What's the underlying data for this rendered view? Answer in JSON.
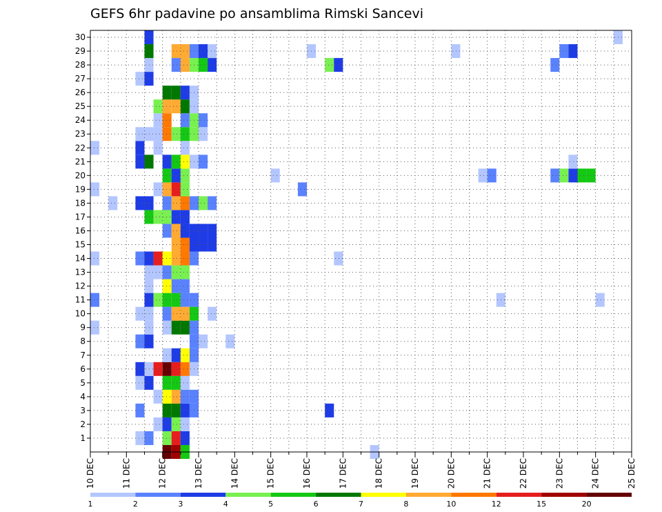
{
  "chart_data": {
    "type": "heatmap",
    "title": "GEFS 6hr padavine po ansamblima Rimski Sancevi",
    "xlabel": "",
    "ylabel": "",
    "x_tick_labels": [
      "10 DEC",
      "11 DEC",
      "12 DEC",
      "13 DEC",
      "14 DEC",
      "15 DEC",
      "16 DEC",
      "17 DEC",
      "18 DEC",
      "19 DEC",
      "20 DEC",
      "21 DEC",
      "22 DEC",
      "23 DEC",
      "24 DEC",
      "25 DEC"
    ],
    "x_range_days": [
      10,
      25
    ],
    "time_step_hours": 6,
    "ensemble_members": [
      0,
      30
    ],
    "y_tick_labels": [
      "1",
      "2",
      "3",
      "4",
      "5",
      "6",
      "7",
      "8",
      "9",
      "10",
      "11",
      "12",
      "13",
      "14",
      "15",
      "16",
      "17",
      "18",
      "19",
      "20",
      "21",
      "22",
      "23",
      "24",
      "25",
      "26",
      "27",
      "28",
      "29",
      "30"
    ],
    "grid": "dotted",
    "legend": {
      "placement": "bottom",
      "labels": [
        "1",
        "2",
        "3",
        "4",
        "5",
        "6",
        "7",
        "8",
        "10",
        "12",
        "15",
        "20"
      ],
      "colors": [
        "#b4c6ff",
        "#5a82ff",
        "#1e3ce6",
        "#78f050",
        "#14c814",
        "#007800",
        "#ffff00",
        "#ffaa32",
        "#ff7800",
        "#e61e1e",
        "#a00000",
        "#640000"
      ]
    },
    "values": [
      {
        "m": 0,
        "d": 12.0,
        "c": 11
      },
      {
        "m": 0,
        "d": 12.25,
        "c": 10
      },
      {
        "m": 0,
        "d": 12.5,
        "c": 4
      },
      {
        "m": 0,
        "d": 17.75,
        "c": 0
      },
      {
        "m": 1,
        "d": 11.25,
        "c": 0
      },
      {
        "m": 1,
        "d": 11.5,
        "c": 1
      },
      {
        "m": 1,
        "d": 12.0,
        "c": 3
      },
      {
        "m": 1,
        "d": 12.25,
        "c": 9
      },
      {
        "m": 1,
        "d": 12.5,
        "c": 2
      },
      {
        "m": 2,
        "d": 11.75,
        "c": 0
      },
      {
        "m": 2,
        "d": 12.0,
        "c": 2
      },
      {
        "m": 2,
        "d": 12.25,
        "c": 3
      },
      {
        "m": 2,
        "d": 12.5,
        "c": 0
      },
      {
        "m": 3,
        "d": 11.25,
        "c": 1
      },
      {
        "m": 3,
        "d": 12.0,
        "c": 5
      },
      {
        "m": 3,
        "d": 12.25,
        "c": 5
      },
      {
        "m": 3,
        "d": 12.5,
        "c": 2
      },
      {
        "m": 3,
        "d": 12.75,
        "c": 1
      },
      {
        "m": 3,
        "d": 16.5,
        "c": 2
      },
      {
        "m": 4,
        "d": 11.75,
        "c": 0
      },
      {
        "m": 4,
        "d": 12.0,
        "c": 6
      },
      {
        "m": 4,
        "d": 12.25,
        "c": 7
      },
      {
        "m": 4,
        "d": 12.5,
        "c": 1
      },
      {
        "m": 4,
        "d": 12.75,
        "c": 1
      },
      {
        "m": 5,
        "d": 11.25,
        "c": 0
      },
      {
        "m": 5,
        "d": 11.5,
        "c": 2
      },
      {
        "m": 5,
        "d": 12.0,
        "c": 4
      },
      {
        "m": 5,
        "d": 12.25,
        "c": 4
      },
      {
        "m": 5,
        "d": 12.5,
        "c": 0
      },
      {
        "m": 6,
        "d": 11.25,
        "c": 2
      },
      {
        "m": 6,
        "d": 11.5,
        "c": 0
      },
      {
        "m": 6,
        "d": 11.75,
        "c": 9
      },
      {
        "m": 6,
        "d": 12.0,
        "c": 11
      },
      {
        "m": 6,
        "d": 12.25,
        "c": 9
      },
      {
        "m": 6,
        "d": 12.5,
        "c": 8
      },
      {
        "m": 6,
        "d": 12.75,
        "c": 0
      },
      {
        "m": 7,
        "d": 12.0,
        "c": 0
      },
      {
        "m": 7,
        "d": 12.25,
        "c": 2
      },
      {
        "m": 7,
        "d": 12.5,
        "c": 6
      },
      {
        "m": 7,
        "d": 12.75,
        "c": 1
      },
      {
        "m": 8,
        "d": 11.25,
        "c": 1
      },
      {
        "m": 8,
        "d": 11.5,
        "c": 2
      },
      {
        "m": 8,
        "d": 12.75,
        "c": 1
      },
      {
        "m": 8,
        "d": 13.0,
        "c": 0
      },
      {
        "m": 8,
        "d": 13.75,
        "c": 0
      },
      {
        "m": 9,
        "d": 10.0,
        "c": 0
      },
      {
        "m": 9,
        "d": 11.5,
        "c": 0
      },
      {
        "m": 9,
        "d": 12.0,
        "c": 0
      },
      {
        "m": 9,
        "d": 12.25,
        "c": 5
      },
      {
        "m": 9,
        "d": 12.5,
        "c": 5
      },
      {
        "m": 9,
        "d": 12.75,
        "c": 1
      },
      {
        "m": 10,
        "d": 11.25,
        "c": 0
      },
      {
        "m": 10,
        "d": 11.5,
        "c": 0
      },
      {
        "m": 10,
        "d": 12.0,
        "c": 1
      },
      {
        "m": 10,
        "d": 12.25,
        "c": 7
      },
      {
        "m": 10,
        "d": 12.5,
        "c": 7
      },
      {
        "m": 10,
        "d": 12.75,
        "c": 4
      },
      {
        "m": 10,
        "d": 13.25,
        "c": 0
      },
      {
        "m": 11,
        "d": 10.0,
        "c": 1
      },
      {
        "m": 11,
        "d": 11.5,
        "c": 2
      },
      {
        "m": 11,
        "d": 11.75,
        "c": 3
      },
      {
        "m": 11,
        "d": 12.0,
        "c": 4
      },
      {
        "m": 11,
        "d": 12.25,
        "c": 4
      },
      {
        "m": 11,
        "d": 12.5,
        "c": 1
      },
      {
        "m": 11,
        "d": 12.75,
        "c": 1
      },
      {
        "m": 11,
        "d": 21.25,
        "c": 0
      },
      {
        "m": 11,
        "d": 24.0,
        "c": 0
      },
      {
        "m": 12,
        "d": 11.5,
        "c": 0
      },
      {
        "m": 12,
        "d": 12.0,
        "c": 6
      },
      {
        "m": 12,
        "d": 12.25,
        "c": 1
      },
      {
        "m": 12,
        "d": 12.5,
        "c": 1
      },
      {
        "m": 13,
        "d": 11.5,
        "c": 0
      },
      {
        "m": 13,
        "d": 11.75,
        "c": 0
      },
      {
        "m": 13,
        "d": 12.0,
        "c": 1
      },
      {
        "m": 13,
        "d": 12.25,
        "c": 3
      },
      {
        "m": 13,
        "d": 12.5,
        "c": 3
      },
      {
        "m": 14,
        "d": 10.0,
        "c": 0
      },
      {
        "m": 14,
        "d": 11.25,
        "c": 1
      },
      {
        "m": 14,
        "d": 11.5,
        "c": 2
      },
      {
        "m": 14,
        "d": 11.75,
        "c": 9
      },
      {
        "m": 14,
        "d": 12.0,
        "c": 6
      },
      {
        "m": 14,
        "d": 12.25,
        "c": 7
      },
      {
        "m": 14,
        "d": 12.5,
        "c": 8
      },
      {
        "m": 14,
        "d": 12.75,
        "c": 1
      },
      {
        "m": 14,
        "d": 16.75,
        "c": 0
      },
      {
        "m": 15,
        "d": 12.25,
        "c": 7
      },
      {
        "m": 15,
        "d": 12.5,
        "c": 8
      },
      {
        "m": 15,
        "d": 12.75,
        "c": 2
      },
      {
        "m": 15,
        "d": 13.0,
        "c": 2
      },
      {
        "m": 15,
        "d": 13.25,
        "c": 2
      },
      {
        "m": 16,
        "d": 12.0,
        "c": 1
      },
      {
        "m": 16,
        "d": 12.25,
        "c": 7
      },
      {
        "m": 16,
        "d": 12.5,
        "c": 2
      },
      {
        "m": 16,
        "d": 12.75,
        "c": 2
      },
      {
        "m": 16,
        "d": 13.0,
        "c": 2
      },
      {
        "m": 16,
        "d": 13.25,
        "c": 2
      },
      {
        "m": 17,
        "d": 11.5,
        "c": 4
      },
      {
        "m": 17,
        "d": 11.75,
        "c": 3
      },
      {
        "m": 17,
        "d": 12.0,
        "c": 3
      },
      {
        "m": 17,
        "d": 12.25,
        "c": 2
      },
      {
        "m": 17,
        "d": 12.5,
        "c": 2
      },
      {
        "m": 18,
        "d": 10.5,
        "c": 0
      },
      {
        "m": 18,
        "d": 11.25,
        "c": 2
      },
      {
        "m": 18,
        "d": 11.5,
        "c": 2
      },
      {
        "m": 18,
        "d": 12.0,
        "c": 1
      },
      {
        "m": 18,
        "d": 12.25,
        "c": 7
      },
      {
        "m": 18,
        "d": 12.5,
        "c": 8
      },
      {
        "m": 18,
        "d": 12.75,
        "c": 1
      },
      {
        "m": 18,
        "d": 13.0,
        "c": 3
      },
      {
        "m": 18,
        "d": 13.25,
        "c": 1
      },
      {
        "m": 19,
        "d": 10.0,
        "c": 0
      },
      {
        "m": 19,
        "d": 11.75,
        "c": 0
      },
      {
        "m": 19,
        "d": 12.0,
        "c": 7
      },
      {
        "m": 19,
        "d": 12.25,
        "c": 9
      },
      {
        "m": 19,
        "d": 12.5,
        "c": 3
      },
      {
        "m": 19,
        "d": 15.75,
        "c": 1
      },
      {
        "m": 20,
        "d": 12.0,
        "c": 4
      },
      {
        "m": 20,
        "d": 12.25,
        "c": 2
      },
      {
        "m": 20,
        "d": 12.5,
        "c": 3
      },
      {
        "m": 20,
        "d": 15.0,
        "c": 0
      },
      {
        "m": 20,
        "d": 20.75,
        "c": 0
      },
      {
        "m": 20,
        "d": 21.0,
        "c": 1
      },
      {
        "m": 20,
        "d": 22.75,
        "c": 1
      },
      {
        "m": 20,
        "d": 23.0,
        "c": 3
      },
      {
        "m": 20,
        "d": 23.25,
        "c": 2
      },
      {
        "m": 20,
        "d": 23.5,
        "c": 4
      },
      {
        "m": 20,
        "d": 23.75,
        "c": 4
      },
      {
        "m": 21,
        "d": 11.25,
        "c": 2
      },
      {
        "m": 21,
        "d": 11.5,
        "c": 5
      },
      {
        "m": 21,
        "d": 12.0,
        "c": 2
      },
      {
        "m": 21,
        "d": 12.25,
        "c": 4
      },
      {
        "m": 21,
        "d": 12.5,
        "c": 6
      },
      {
        "m": 21,
        "d": 12.75,
        "c": 0
      },
      {
        "m": 21,
        "d": 13.0,
        "c": 1
      },
      {
        "m": 21,
        "d": 23.25,
        "c": 0
      },
      {
        "m": 22,
        "d": 10.0,
        "c": 0
      },
      {
        "m": 22,
        "d": 11.25,
        "c": 2
      },
      {
        "m": 22,
        "d": 11.75,
        "c": 0
      },
      {
        "m": 22,
        "d": 12.5,
        "c": 0
      },
      {
        "m": 23,
        "d": 11.25,
        "c": 0
      },
      {
        "m": 23,
        "d": 11.5,
        "c": 0
      },
      {
        "m": 23,
        "d": 11.75,
        "c": 0
      },
      {
        "m": 23,
        "d": 12.0,
        "c": 8
      },
      {
        "m": 23,
        "d": 12.25,
        "c": 3
      },
      {
        "m": 23,
        "d": 12.5,
        "c": 4
      },
      {
        "m": 23,
        "d": 12.75,
        "c": 3
      },
      {
        "m": 23,
        "d": 13.0,
        "c": 0
      },
      {
        "m": 24,
        "d": 11.75,
        "c": 0
      },
      {
        "m": 24,
        "d": 12.0,
        "c": 8
      },
      {
        "m": 24,
        "d": 12.5,
        "c": 1
      },
      {
        "m": 24,
        "d": 12.75,
        "c": 3
      },
      {
        "m": 24,
        "d": 13.0,
        "c": 1
      },
      {
        "m": 25,
        "d": 11.75,
        "c": 3
      },
      {
        "m": 25,
        "d": 12.0,
        "c": 7
      },
      {
        "m": 25,
        "d": 12.25,
        "c": 7
      },
      {
        "m": 25,
        "d": 12.5,
        "c": 5
      },
      {
        "m": 25,
        "d": 12.75,
        "c": 0
      },
      {
        "m": 26,
        "d": 12.0,
        "c": 5
      },
      {
        "m": 26,
        "d": 12.25,
        "c": 5
      },
      {
        "m": 26,
        "d": 12.5,
        "c": 2
      },
      {
        "m": 26,
        "d": 12.75,
        "c": 0
      },
      {
        "m": 27,
        "d": 11.25,
        "c": 0
      },
      {
        "m": 27,
        "d": 11.5,
        "c": 2
      },
      {
        "m": 28,
        "d": 11.5,
        "c": 0
      },
      {
        "m": 28,
        "d": 12.25,
        "c": 1
      },
      {
        "m": 28,
        "d": 12.5,
        "c": 7
      },
      {
        "m": 28,
        "d": 12.75,
        "c": 3
      },
      {
        "m": 28,
        "d": 13.0,
        "c": 4
      },
      {
        "m": 28,
        "d": 13.25,
        "c": 2
      },
      {
        "m": 28,
        "d": 16.5,
        "c": 3
      },
      {
        "m": 28,
        "d": 16.75,
        "c": 2
      },
      {
        "m": 28,
        "d": 22.75,
        "c": 1
      },
      {
        "m": 29,
        "d": 11.5,
        "c": 5
      },
      {
        "m": 29,
        "d": 12.25,
        "c": 7
      },
      {
        "m": 29,
        "d": 12.5,
        "c": 7
      },
      {
        "m": 29,
        "d": 12.75,
        "c": 1
      },
      {
        "m": 29,
        "d": 13.0,
        "c": 2
      },
      {
        "m": 29,
        "d": 13.25,
        "c": 0
      },
      {
        "m": 29,
        "d": 16.0,
        "c": 0
      },
      {
        "m": 29,
        "d": 20.0,
        "c": 0
      },
      {
        "m": 29,
        "d": 23.0,
        "c": 1
      },
      {
        "m": 29,
        "d": 23.25,
        "c": 2
      },
      {
        "m": 30,
        "d": 11.5,
        "c": 2
      },
      {
        "m": 30,
        "d": 24.5,
        "c": 0
      }
    ]
  }
}
